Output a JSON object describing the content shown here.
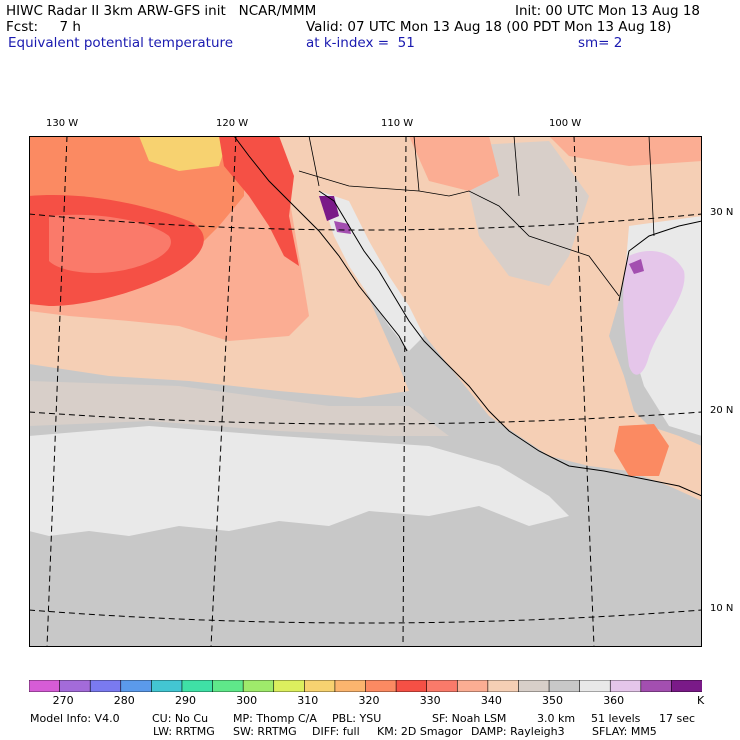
{
  "header": {
    "title_left": "HIWC Radar II 3km ARW-GFS init   NCAR/MMM",
    "init": "Init: 00 UTC Mon 13 Aug 18",
    "fcst": "Fcst:     7 h",
    "valid": "Valid: 07 UTC Mon 13 Aug 18 (00 PDT Mon 13 Aug 18)",
    "field": "Equivalent potential temperature",
    "level": "at k-index =  51",
    "smoothing": "sm= 2"
  },
  "map": {
    "lon_labels": [
      "130 W",
      "120 W",
      "110 W",
      "100 W"
    ],
    "lat_labels": [
      "30 N",
      "20 N",
      "10 N"
    ]
  },
  "colorbar": {
    "colors": [
      "#d65cd6",
      "#a36bd9",
      "#7a7af0",
      "#5b9aeb",
      "#43c6d2",
      "#3fe0a6",
      "#5fe88a",
      "#9fea6b",
      "#dcef5e",
      "#f7d270",
      "#fbb56e",
      "#fb8a62",
      "#f55045",
      "#fa7a6a",
      "#fbad93",
      "#f5cfb5",
      "#d8cfc9",
      "#c8c8c8",
      "#e9e9e9",
      "#e5c6ea",
      "#a34fb0",
      "#7a1a88"
    ],
    "tick_labels": [
      "270",
      "280",
      "290",
      "300",
      "310",
      "320",
      "330",
      "340",
      "350",
      "360"
    ],
    "units": "K"
  },
  "footer": {
    "line1": [
      "Model Info: V4.0",
      "CU: No Cu",
      "MP: Thomp C/A",
      "PBL: YSU",
      "SF: Noah LSM",
      "3.0 km",
      "51 levels",
      "17 sec"
    ],
    "line2": [
      "LW: RRTMG",
      "SW: RRTMG",
      "DIFF: full",
      "KM: 2D Smagor",
      "DAMP: Rayleigh3",
      "SFLAY: MM5"
    ]
  }
}
